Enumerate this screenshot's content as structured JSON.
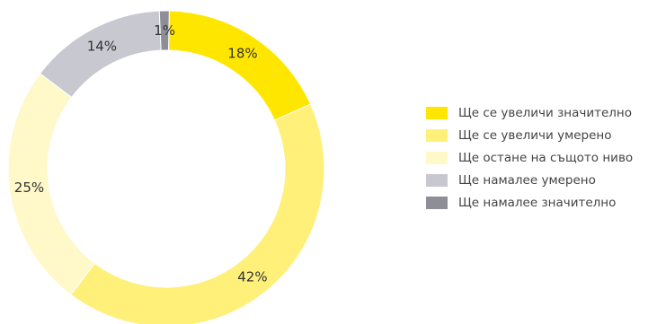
{
  "chart_data": {
    "type": "pie",
    "variant": "donut",
    "labels": [
      "Ще се увеличи значително",
      "Ще се увеличи умерено",
      "Ще остане на същото ниво",
      "Ще намалее умерено",
      "Ще намалее значително"
    ],
    "values": [
      18,
      42,
      25,
      14,
      1
    ],
    "value_labels": [
      "18%",
      "42%",
      "25%",
      "14%",
      "1%"
    ],
    "colors": [
      "#FFE600",
      "#FFF07A",
      "#FFF8C9",
      "#C8C8D0",
      "#8E8E96"
    ],
    "legend_position": "right",
    "title": ""
  }
}
